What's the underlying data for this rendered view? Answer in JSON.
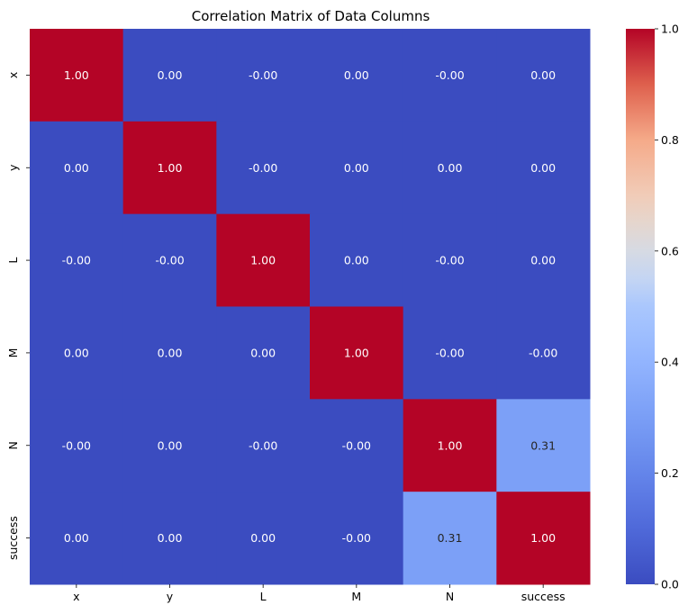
{
  "chart_data": {
    "type": "heatmap",
    "title": "Correlation Matrix of Data Columns",
    "xlabel": "",
    "ylabel": "",
    "x_categories": [
      "x",
      "y",
      "L",
      "M",
      "N",
      "success"
    ],
    "y_categories": [
      "x",
      "y",
      "L",
      "M",
      "N",
      "success"
    ],
    "cell_labels": [
      [
        "1.00",
        "0.00",
        "-0.00",
        "0.00",
        "-0.00",
        "0.00"
      ],
      [
        "0.00",
        "1.00",
        "-0.00",
        "0.00",
        "0.00",
        "0.00"
      ],
      [
        "-0.00",
        "-0.00",
        "1.00",
        "0.00",
        "-0.00",
        "0.00"
      ],
      [
        "0.00",
        "0.00",
        "0.00",
        "1.00",
        "-0.00",
        "-0.00"
      ],
      [
        "-0.00",
        "0.00",
        "-0.00",
        "-0.00",
        "1.00",
        "0.31"
      ],
      [
        "0.00",
        "0.00",
        "0.00",
        "-0.00",
        "0.31",
        "1.00"
      ]
    ],
    "values": [
      [
        1.0,
        0.0,
        0.0,
        0.0,
        0.0,
        0.0
      ],
      [
        0.0,
        1.0,
        0.0,
        0.0,
        0.0,
        0.0
      ],
      [
        0.0,
        0.0,
        1.0,
        0.0,
        0.0,
        0.0
      ],
      [
        0.0,
        0.0,
        0.0,
        1.0,
        0.0,
        0.0
      ],
      [
        0.0,
        0.0,
        0.0,
        0.0,
        1.0,
        0.31
      ],
      [
        0.0,
        0.0,
        0.0,
        0.0,
        0.31,
        1.0
      ]
    ],
    "colormap": "coolwarm",
    "colorbar": {
      "range": [
        0.0,
        1.0
      ],
      "ticks": [
        0.0,
        0.2,
        0.4,
        0.6,
        0.8,
        1.0
      ],
      "tick_labels": [
        "0.0",
        "0.2",
        "0.4",
        "0.6",
        "0.8",
        "1.0"
      ]
    },
    "colors": {
      "low": "#3b4cc0",
      "mid": "#dddddd",
      "high": "#b40426",
      "text_light": "#ffffff",
      "text_dark": "#262626"
    }
  }
}
